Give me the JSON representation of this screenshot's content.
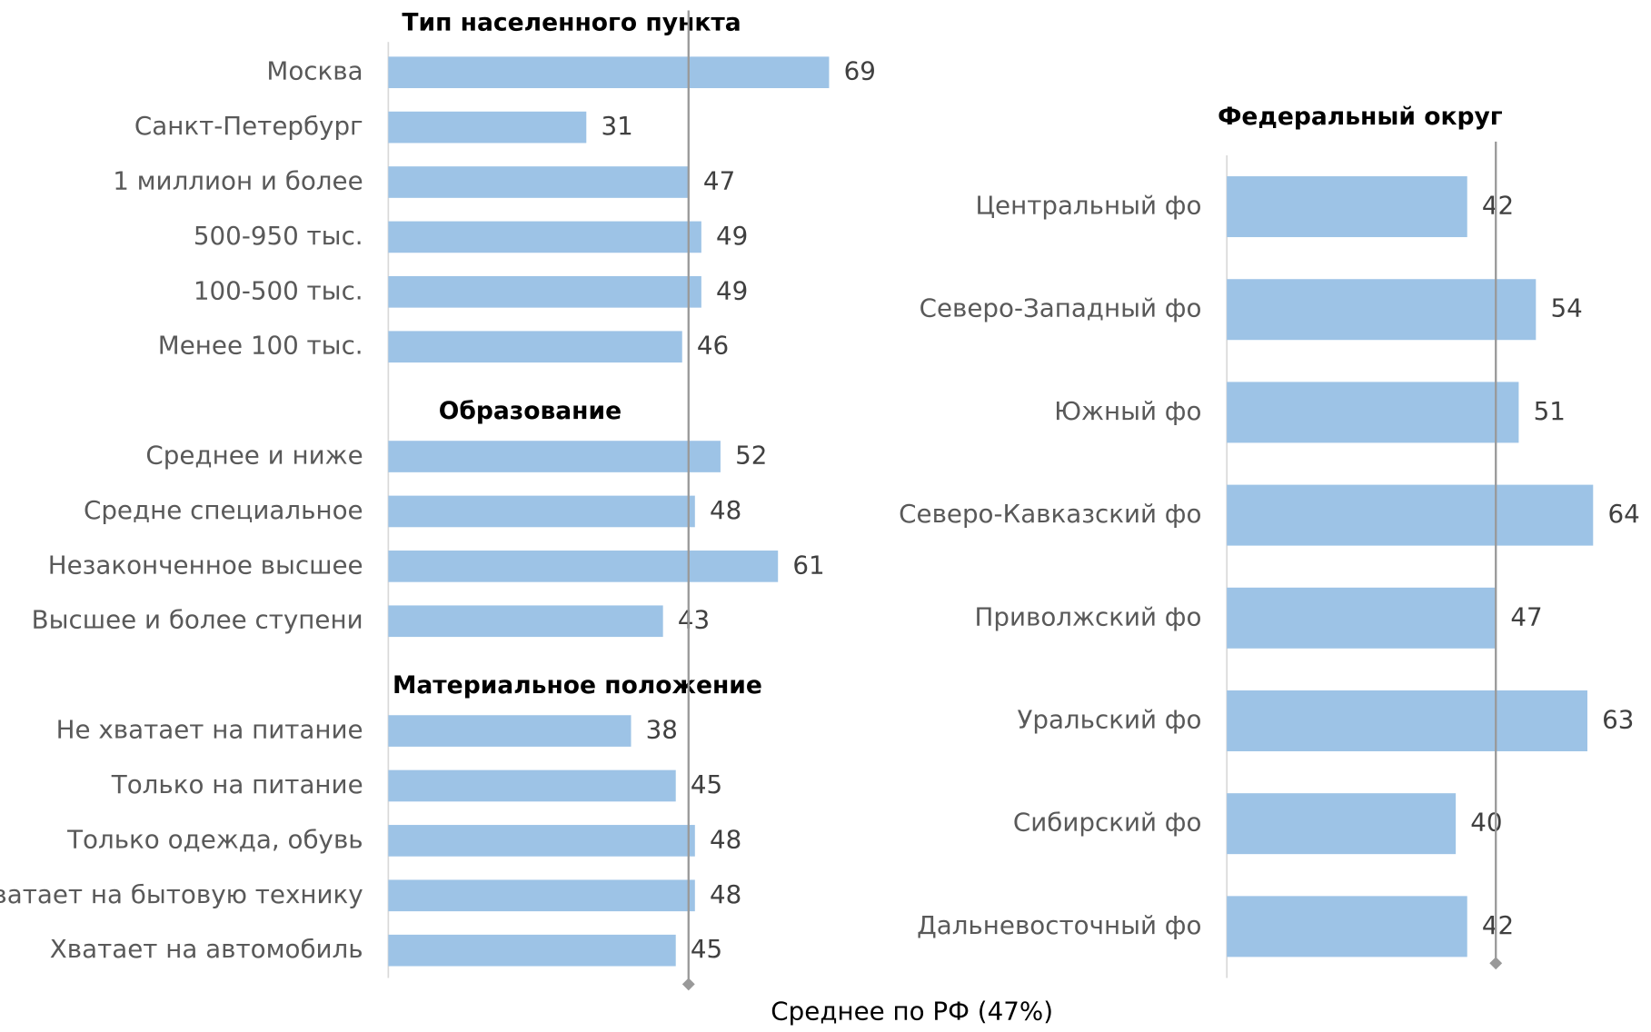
{
  "chart_data": [
    {
      "type": "bar",
      "orientation": "horizontal",
      "color": "#9dc3e6",
      "xlim": [
        0,
        69
      ],
      "sections": [
        {
          "title": "Тип населенного пункта",
          "categories": [
            "Москва",
            "Санкт-Петербург",
            "1 миллион и более",
            "500-950 тыс.",
            "100-500 тыс.",
            "Менее 100 тыс."
          ],
          "values": [
            69,
            31,
            47,
            49,
            49,
            46
          ]
        },
        {
          "title": "Образование",
          "categories": [
            "Среднее и ниже",
            "Средне специальное",
            "Незаконченное высшее",
            "Высшее и более ступени"
          ],
          "values": [
            52,
            48,
            61,
            43
          ]
        },
        {
          "title": "Материальное положение",
          "categories": [
            "Не хватает на питание",
            "Только на питание",
            "Только одежда, обувь",
            "Хватает на бытовую технику",
            "Хватает на автомобиль"
          ],
          "values": [
            38,
            45,
            48,
            48,
            45
          ]
        }
      ]
    },
    {
      "type": "bar",
      "orientation": "horizontal",
      "color": "#9dc3e6",
      "xlim": [
        0,
        64
      ],
      "title": "Федеральный округ",
      "categories": [
        "Центральный фо",
        "Северо-Западный фо",
        "Южный фо",
        "Северо-Кавказский фо",
        "Приволжский фо",
        "Уральский фо",
        "Сибирский фо",
        "Дальневосточный фо"
      ],
      "values": [
        42,
        54,
        51,
        64,
        47,
        63,
        40,
        42
      ]
    }
  ],
  "reference": {
    "value": 47,
    "label": "Среднее по РФ (47%)"
  }
}
